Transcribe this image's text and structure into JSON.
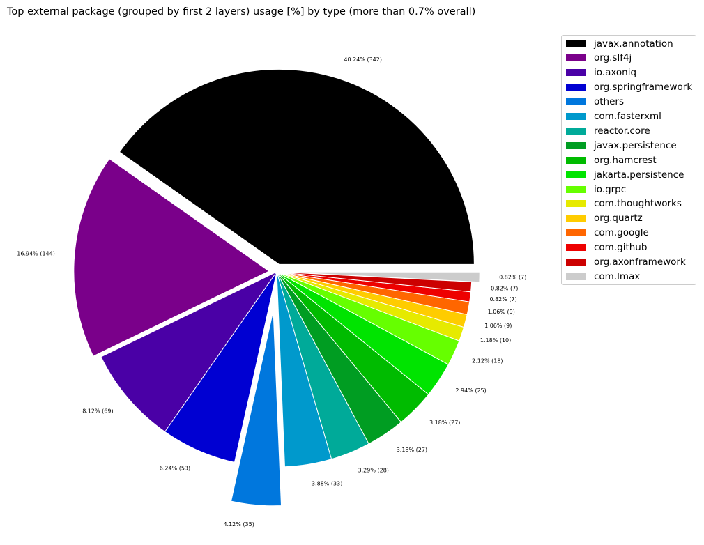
{
  "chart_data": {
    "type": "pie",
    "title": "Top external package (grouped by first 2 layers) usage [%] by type (more than 0.7% overall)",
    "slices": [
      {
        "label": "javax.annotation",
        "percent": 40.24,
        "count": 342,
        "color": "#000000",
        "explode": 0.04,
        "display": "40.24% (342)"
      },
      {
        "label": "org.slf4j",
        "percent": 16.94,
        "count": 144,
        "color": "#7a008a",
        "explode": 0.04,
        "display": "16.94% (144)"
      },
      {
        "label": "io.axoniq",
        "percent": 8.12,
        "count": 69,
        "color": "#4a00a6",
        "explode": 0.0,
        "display": "8.12% (69)"
      },
      {
        "label": "org.springframework",
        "percent": 6.24,
        "count": 53,
        "color": "#0000d2",
        "explode": 0.0,
        "display": "6.24% (53)"
      },
      {
        "label": "others",
        "percent": 4.12,
        "count": 35,
        "color": "#0077dd",
        "explode": 0.2,
        "display": "4.12% (35)"
      },
      {
        "label": "com.fasterxml",
        "percent": 3.88,
        "count": 33,
        "color": "#0099cc",
        "explode": 0.0,
        "display": "3.88% (33)"
      },
      {
        "label": "reactor.core",
        "percent": 3.29,
        "count": 28,
        "color": "#00aa99",
        "explode": 0.0,
        "display": "3.29% (28)"
      },
      {
        "label": "javax.persistence",
        "percent": 3.18,
        "count": 27,
        "color": "#009d22",
        "explode": 0.0,
        "display": "3.18% (27)"
      },
      {
        "label": "org.hamcrest",
        "percent": 3.18,
        "count": 27,
        "color": "#00bb00",
        "explode": 0.0,
        "display": "3.18% (27)"
      },
      {
        "label": "jakarta.persistence",
        "percent": 2.94,
        "count": 25,
        "color": "#00e400",
        "explode": 0.0,
        "display": "2.94% (25)"
      },
      {
        "label": "io.grpc",
        "percent": 2.12,
        "count": 18,
        "color": "#66ff00",
        "explode": 0.0,
        "display": "2.12% (18)"
      },
      {
        "label": "com.thoughtworks",
        "percent": 1.18,
        "count": 10,
        "color": "#e6ea00",
        "explode": 0.0,
        "display": "1.18% (10)"
      },
      {
        "label": "org.quartz",
        "percent": 1.06,
        "count": 9,
        "color": "#ffcc00",
        "explode": 0.0,
        "display": "1.06% (9)"
      },
      {
        "label": "com.google",
        "percent": 1.06,
        "count": 9,
        "color": "#ff6600",
        "explode": 0.0,
        "display": "1.06% (9)"
      },
      {
        "label": "com.github",
        "percent": 0.82,
        "count": 7,
        "color": "#ee0000",
        "explode": 0.0,
        "display": "0.82% (7)"
      },
      {
        "label": "org.axonframework",
        "percent": 0.82,
        "count": 7,
        "color": "#cc0000",
        "explode": 0.0,
        "display": "0.82% (7)"
      },
      {
        "label": "com.lmax",
        "percent": 0.82,
        "count": 7,
        "color": "#cccccc",
        "explode": 0.04,
        "display": "0.82% (7)"
      }
    ],
    "legend_placement": "upper-right, outside plot"
  }
}
